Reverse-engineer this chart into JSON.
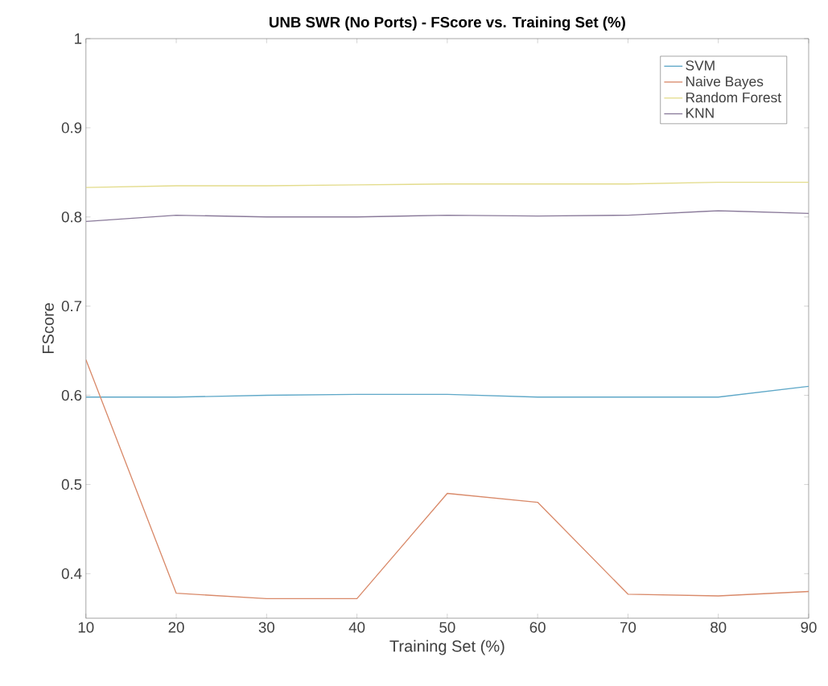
{
  "chart_data": {
    "type": "line",
    "title": "UNB SWR (No Ports) - FScore vs. Training Set (%)",
    "xlabel": "Training Set (%)",
    "ylabel": "FScore",
    "x": [
      10,
      20,
      30,
      40,
      50,
      60,
      70,
      80,
      90
    ],
    "series": [
      {
        "name": "SVM",
        "color": "#5fa8c8",
        "values": [
          0.598,
          0.598,
          0.6,
          0.601,
          0.601,
          0.598,
          0.598,
          0.598,
          0.61
        ]
      },
      {
        "name": "Naive Bayes",
        "color": "#d98a6a",
        "values": [
          0.64,
          0.378,
          0.372,
          0.372,
          0.49,
          0.48,
          0.377,
          0.375,
          0.38
        ]
      },
      {
        "name": "Random Forest",
        "color": "#e3dc8c",
        "values": [
          0.833,
          0.835,
          0.835,
          0.836,
          0.837,
          0.837,
          0.837,
          0.839,
          0.839
        ]
      },
      {
        "name": "KNN",
        "color": "#8a7a9a",
        "values": [
          0.795,
          0.802,
          0.8,
          0.8,
          0.802,
          0.801,
          0.802,
          0.807,
          0.804
        ]
      }
    ],
    "xlim": [
      10,
      90
    ],
    "ylim": [
      0.35,
      1
    ],
    "xticks": [
      10,
      20,
      30,
      40,
      50,
      60,
      70,
      80,
      90
    ],
    "yticks": [
      0.4,
      0.5,
      0.6,
      0.7,
      0.8,
      0.9,
      1
    ],
    "legend": "top right",
    "grid": false,
    "marker": "none",
    "line_style": "solid"
  }
}
